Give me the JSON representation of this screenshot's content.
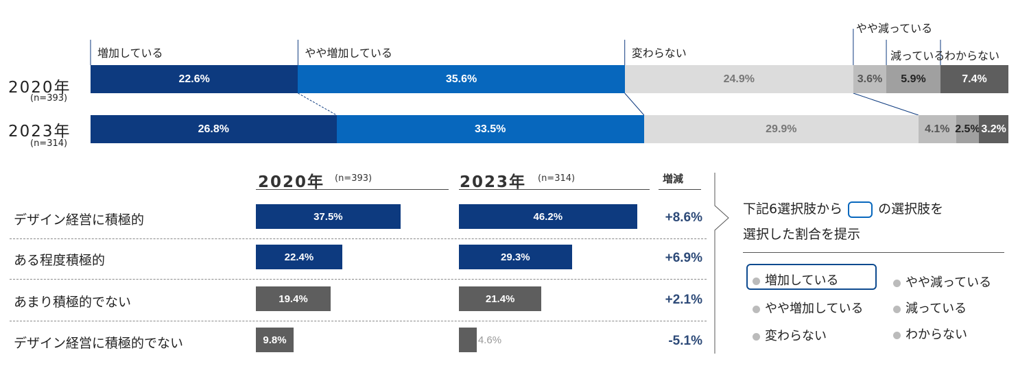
{
  "top_chart": {
    "categories": [
      "増加している",
      "やや増加している",
      "変わらない",
      "やや減っている",
      "減っている",
      "わからない"
    ],
    "colors": [
      "#0d3a7f",
      "#0767bd",
      "#dcdcdc",
      "#bdbdbd",
      "#a0a0a0",
      "#5e5e5e"
    ],
    "text_colors": [
      "#ffffff",
      "#ffffff",
      "#777777",
      "#555555",
      "#222222",
      "#ffffff"
    ],
    "rows": [
      {
        "year": "2020年",
        "n": "(n=393)",
        "values": [
          22.6,
          35.6,
          24.9,
          3.6,
          5.9,
          7.4
        ],
        "labels": [
          "22.6%",
          "35.6%",
          "24.9%",
          "3.6%",
          "5.9%",
          "7.4%"
        ]
      },
      {
        "year": "2023年",
        "n": "(n=314)",
        "values": [
          26.8,
          33.5,
          29.9,
          4.1,
          2.5,
          3.2
        ],
        "labels": [
          "26.8%",
          "33.5%",
          "29.9%",
          "4.1%",
          "2.5%",
          "3.2%"
        ]
      }
    ]
  },
  "bottom_chart": {
    "col2020": {
      "year": "2020年",
      "n": "(n=393)"
    },
    "col2023": {
      "year": "2023年",
      "n": "(n=314)"
    },
    "change_header": "増減",
    "max_value": 50,
    "rows": [
      {
        "label": "デザイン経営に積極的",
        "v2020": 37.5,
        "l2020": "37.5%",
        "v2023": 46.2,
        "l2023": "46.2%",
        "change": "+8.6%",
        "color": "#0d3a7f"
      },
      {
        "label": "ある程度積極的",
        "v2020": 22.4,
        "l2020": "22.4%",
        "v2023": 29.3,
        "l2023": "29.3%",
        "change": "+6.9%",
        "color": "#0d3a7f"
      },
      {
        "label": "あまり積極的でない",
        "v2020": 19.4,
        "l2020": "19.4%",
        "v2023": 21.4,
        "l2023": "21.4%",
        "change": "+2.1%",
        "color": "#5e5e5e"
      },
      {
        "label": "デザイン経営に積極的でない",
        "v2020": 9.8,
        "l2020": "9.8%",
        "v2023": 4.6,
        "l2023": "4.6%",
        "change": "-5.1%",
        "color": "#5e5e5e"
      }
    ]
  },
  "legend": {
    "note_before": "下記6選択肢から",
    "note_after": "の選択肢を",
    "note_line2": "選択した割合を提示",
    "items": [
      "増加している",
      "やや増加している",
      "変わらない",
      "やや減っている",
      "減っている",
      "わからない"
    ]
  },
  "chart_data": [
    {
      "type": "bar",
      "orientation": "horizontal-stacked-100",
      "categories": [
        "2020年 (n=393)",
        "2023年 (n=314)"
      ],
      "series": [
        {
          "name": "増加している",
          "values": [
            22.6,
            26.8
          ]
        },
        {
          "name": "やや増加している",
          "values": [
            35.6,
            33.5
          ]
        },
        {
          "name": "変わらない",
          "values": [
            24.9,
            29.9
          ]
        },
        {
          "name": "やや減っている",
          "values": [
            3.6,
            4.1
          ]
        },
        {
          "name": "減っている",
          "values": [
            5.9,
            2.5
          ]
        },
        {
          "name": "わからない",
          "values": [
            7.4,
            3.2
          ]
        }
      ],
      "unit": "%"
    },
    {
      "type": "bar",
      "orientation": "horizontal",
      "categories": [
        "デザイン経営に積極的",
        "ある程度積極的",
        "あまり積極的でない",
        "デザイン経営に積極的でない"
      ],
      "series": [
        {
          "name": "2020年 (n=393)",
          "values": [
            37.5,
            22.4,
            19.4,
            9.8
          ]
        },
        {
          "name": "2023年 (n=314)",
          "values": [
            46.2,
            29.3,
            21.4,
            4.6
          ]
        }
      ],
      "changes": [
        "+8.6%",
        "+6.9%",
        "+2.1%",
        "-5.1%"
      ],
      "unit": "%"
    }
  ]
}
